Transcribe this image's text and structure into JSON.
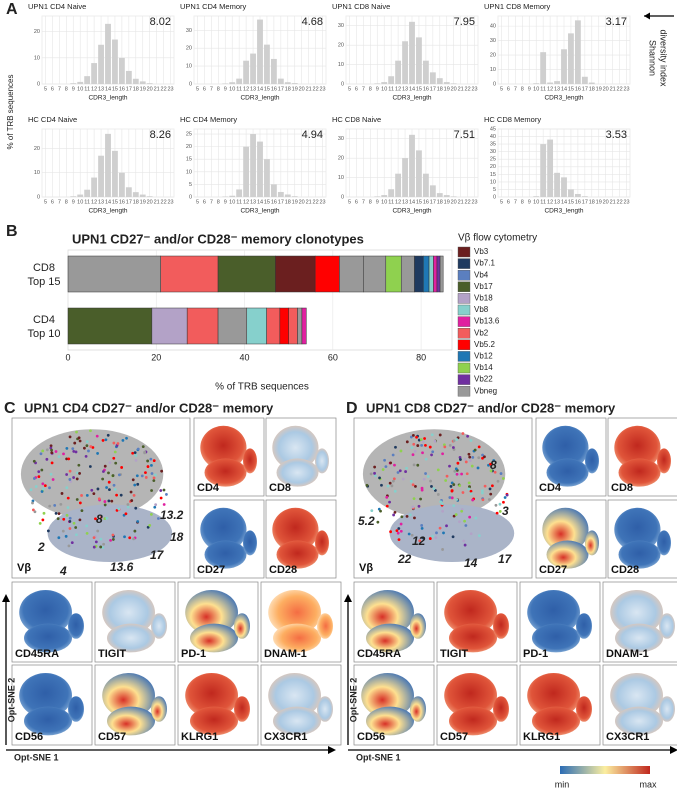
{
  "panel_a": {
    "label": "A",
    "y_label": "% of TRB sequences",
    "x_label": "CDR3_length",
    "side_label": [
      "Shannon",
      "diversity index"
    ],
    "categories": [
      5,
      6,
      7,
      8,
      9,
      10,
      11,
      12,
      13,
      14,
      15,
      16,
      17,
      18,
      19,
      20,
      21,
      22,
      23
    ],
    "charts": [
      {
        "title": "UPN1 CD4 Naive",
        "diversity": 8.02,
        "ylim": [
          0,
          26
        ],
        "yticks": [
          0,
          10,
          20
        ],
        "values": [
          0,
          0,
          0,
          0,
          0.3,
          0.8,
          3,
          8,
          15,
          23,
          17,
          10,
          5,
          2,
          1,
          0.3,
          0,
          0,
          0
        ]
      },
      {
        "title": "UPN1 CD4 Memory",
        "diversity": 4.68,
        "ylim": [
          0,
          38
        ],
        "yticks": [
          0,
          10,
          20,
          30
        ],
        "values": [
          0,
          0,
          0,
          0,
          0.3,
          1,
          3,
          13,
          17,
          36,
          22,
          14,
          3,
          1,
          0.5,
          0,
          0,
          0,
          0
        ]
      },
      {
        "title": "UPN1 CD8 Naive",
        "diversity": 7.95,
        "ylim": [
          0,
          35
        ],
        "yticks": [
          0,
          10,
          20,
          30
        ],
        "values": [
          0,
          0,
          0,
          0,
          0.3,
          1,
          4,
          12,
          22,
          32,
          24,
          12,
          6,
          3,
          1,
          0.3,
          0,
          0,
          0
        ]
      },
      {
        "title": "UPN1 CD8 Memory",
        "diversity": 3.17,
        "ylim": [
          0,
          47
        ],
        "yticks": [
          0,
          10,
          20,
          30,
          40
        ],
        "values": [
          0,
          0,
          0,
          0,
          0,
          0.5,
          22,
          1,
          2,
          24,
          35,
          44,
          5,
          1,
          0,
          0,
          0,
          0,
          0
        ]
      },
      {
        "title": "HC CD4 Naive",
        "diversity": 8.26,
        "ylim": [
          0,
          28
        ],
        "yticks": [
          0,
          10,
          20
        ],
        "values": [
          0,
          0,
          0,
          0,
          0.3,
          1,
          3,
          8,
          17,
          26,
          19,
          10,
          4,
          2,
          1,
          0.3,
          0,
          0,
          0
        ]
      },
      {
        "title": "HC CD4 Memory",
        "diversity": 4.94,
        "ylim": [
          0,
          27
        ],
        "yticks": [
          0,
          5,
          10,
          15,
          20,
          25
        ],
        "values": [
          0,
          0,
          0,
          0,
          0.2,
          0.5,
          3,
          20,
          25,
          22,
          15,
          5,
          2,
          1,
          0.3,
          0,
          0,
          0,
          0
        ]
      },
      {
        "title": "HC CD8 Naive",
        "diversity": 7.51,
        "ylim": [
          0,
          35
        ],
        "yticks": [
          0,
          10,
          20,
          30
        ],
        "values": [
          0,
          0,
          0,
          0,
          0.3,
          1,
          4,
          12,
          20,
          32,
          24,
          12,
          6,
          2,
          1,
          0.3,
          0,
          0,
          0
        ]
      },
      {
        "title": "HC CD8 Memory",
        "diversity": 3.53,
        "ylim": [
          0,
          45
        ],
        "yticks": [
          0,
          5,
          10,
          15,
          20,
          25,
          30,
          35,
          40,
          45
        ],
        "values": [
          0,
          0,
          0,
          0,
          0,
          0.5,
          35,
          38,
          16,
          13,
          5,
          2,
          0.5,
          0,
          0,
          0,
          0,
          0,
          0
        ]
      }
    ]
  },
  "panel_b": {
    "label": "B",
    "title": "UPN1 CD27⁻ and/or CD28⁻ memory clonotypes",
    "x_label": "% of TRB sequences",
    "xlim": [
      0,
      87
    ],
    "xticks": [
      0,
      20,
      40,
      60,
      80
    ],
    "rows": [
      {
        "name": "CD8",
        "sub": "Top 15",
        "segments": [
          {
            "vb": "Vbneg",
            "value": 21
          },
          {
            "vb": "Vb2",
            "value": 13
          },
          {
            "vb": "Vb17",
            "value": 13
          },
          {
            "vb": "Vb3",
            "value": 9
          },
          {
            "vb": "Vb5.2",
            "value": 5.5
          },
          {
            "vb": "Vbneg",
            "value": 5.5
          },
          {
            "vb": "Vbneg",
            "value": 5
          },
          {
            "vb": "Vb14",
            "value": 3.5
          },
          {
            "vb": "Vbneg",
            "value": 3
          },
          {
            "vb": "Vb7.1",
            "value": 2
          },
          {
            "vb": "Vb12",
            "value": 1.3
          },
          {
            "vb": "Vb8",
            "value": 1
          },
          {
            "vb": "Vb13.6",
            "value": 0.8
          },
          {
            "vb": "Vb22",
            "value": 0.7
          },
          {
            "vb": "Vbneg",
            "value": 0.7
          }
        ]
      },
      {
        "name": "CD4",
        "sub": "Top 10",
        "segments": [
          {
            "vb": "Vb17",
            "value": 19
          },
          {
            "vb": "Vb18",
            "value": 8
          },
          {
            "vb": "Vb2",
            "value": 7
          },
          {
            "vb": "Vbneg",
            "value": 6.5
          },
          {
            "vb": "Vb8",
            "value": 4.5
          },
          {
            "vb": "Vb2",
            "value": 3
          },
          {
            "vb": "Vb5.2",
            "value": 2
          },
          {
            "vb": "Vb2",
            "value": 2
          },
          {
            "vb": "Vbneg",
            "value": 1
          },
          {
            "vb": "Vb13.6",
            "value": 1
          }
        ]
      }
    ],
    "legend": {
      "title": "Vβ flow cytometry",
      "items": [
        {
          "name": "Vb3",
          "color": "#6b1f1f"
        },
        {
          "name": "Vb7.1",
          "color": "#1f3a5f"
        },
        {
          "name": "Vb4",
          "color": "#5b7fbf"
        },
        {
          "name": "Vb17",
          "color": "#4a5e2a"
        },
        {
          "name": "Vb18",
          "color": "#b3a2c7"
        },
        {
          "name": "Vb8",
          "color": "#86d0cc"
        },
        {
          "name": "Vb13.6",
          "color": "#e020a0"
        },
        {
          "name": "Vb2",
          "color": "#f25c5c"
        },
        {
          "name": "Vb5.2",
          "color": "#ff0000"
        },
        {
          "name": "Vb12",
          "color": "#1f77b4"
        },
        {
          "name": "Vb14",
          "color": "#8fd14f"
        },
        {
          "name": "Vb22",
          "color": "#7030a0"
        },
        {
          "name": "Vbneg",
          "color": "#999999"
        }
      ]
    }
  },
  "panel_c": {
    "label": "C",
    "title": "UPN1 CD4 CD27⁻ and/or CD28⁻ memory",
    "overview_label": "Vβ",
    "clusters": [
      "13.2",
      "8",
      "18",
      "2",
      "17",
      "4",
      "13.6"
    ],
    "markers": [
      "CD4",
      "CD8",
      "CD27",
      "CD28",
      "CD45RA",
      "TIGIT",
      "PD-1",
      "DNAM-1",
      "CD56",
      "CD57",
      "KLRG1",
      "CX3CR1"
    ],
    "y_axis": "Opt-SNE 2",
    "x_axis": "Opt-SNE 1"
  },
  "panel_d": {
    "label": "D",
    "title": "UPN1 CD8 CD27⁻ and/or CD28⁻ memory",
    "overview_label": "Vβ",
    "clusters": [
      "8",
      "3",
      "5.2",
      "12",
      "22",
      "14",
      "17"
    ],
    "markers": [
      "CD4",
      "CD8",
      "CD27",
      "CD28",
      "CD45RA",
      "TIGIT",
      "PD-1",
      "DNAM-1",
      "CD56",
      "CD57",
      "KLRG1",
      "CX3CR1"
    ],
    "y_axis": "Opt-SNE 2",
    "x_axis": "Opt-SNE 1",
    "scale": {
      "min": "min",
      "max": "max"
    }
  }
}
